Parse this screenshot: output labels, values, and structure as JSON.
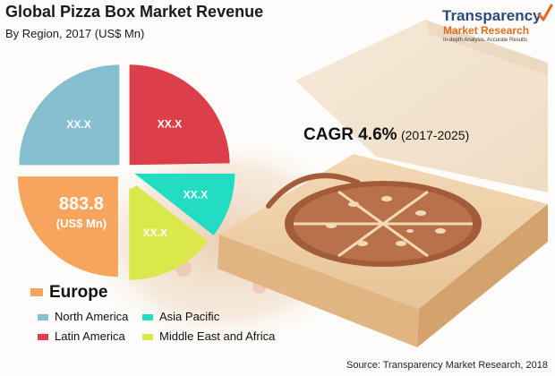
{
  "title": "Global Pizza Box Market Revenue",
  "subtitle": "By Region, 2017 (US$ Mn)",
  "logo": {
    "main": "Transparency",
    "sub": "Market Research",
    "tagline": "In-depth Analysis. Accurate Results",
    "icon": "checkmark-icon"
  },
  "cagr": {
    "label": "CAGR 4.6%",
    "period": "(2017-2025)"
  },
  "source": "Source: Transparency Market Research, 2018",
  "chart_data": {
    "type": "pie",
    "title": "Global Pizza Box Market Revenue",
    "subtitle": "By Region, 2017 (US$ Mn)",
    "legend_placement": "bottom-left",
    "slices": [
      {
        "name": "North America",
        "label": "XX.X",
        "value": null,
        "color": "#86bfcf"
      },
      {
        "name": "Latin America",
        "label": "XX.X",
        "value": null,
        "color": "#dc3f4a"
      },
      {
        "name": "Asia Pacific",
        "label": "XX.X",
        "value": null,
        "color": "#22dcc4"
      },
      {
        "name": "Middle East and Africa",
        "label": "XX.X",
        "value": null,
        "color": "#dbe84c"
      },
      {
        "name": "Europe",
        "label": "883.8",
        "sublabel": "(US$ Mn)",
        "value": 883.8,
        "color": "#f7a55c"
      }
    ],
    "legend": [
      {
        "name": "Europe",
        "color": "#f7a55c",
        "primary": true
      },
      {
        "name": "North America",
        "color": "#86bfcf"
      },
      {
        "name": "Asia Pacific",
        "color": "#22dcc4"
      },
      {
        "name": "Latin America",
        "color": "#dc3f4a"
      },
      {
        "name": "Middle East and Africa",
        "color": "#dbe84c"
      }
    ]
  }
}
